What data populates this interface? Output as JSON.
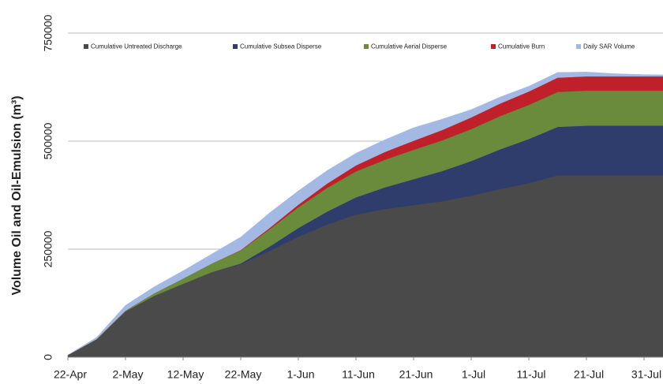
{
  "chart_data": {
    "type": "stacked-area",
    "y_label": "Volume Oil and Oil-Emulsion (m³)",
    "categories": [
      "22-Apr",
      null,
      "2-May",
      null,
      "12-May",
      null,
      "22-May",
      null,
      "1-Jun",
      null,
      "11-Jun",
      null,
      "21-Jun",
      null,
      "1-Jul",
      null,
      "11-Jul",
      null,
      "21-Jul",
      null,
      "31-Jul",
      null
    ],
    "series": [
      {
        "name": "Cumulative Untreated Discharge",
        "color": "#4a4a4a",
        "values": [
          5000,
          42000,
          106000,
          142000,
          170000,
          197000,
          215000,
          246000,
          279000,
          307000,
          330000,
          343000,
          352000,
          361000,
          374000,
          389000,
          403000,
          421000,
          421000,
          421000,
          421000,
          421000
        ]
      },
      {
        "name": "Cumulative Subsea Disperse",
        "color": "#2e3d6b",
        "values": [
          0,
          0,
          0,
          0,
          0,
          0,
          2000,
          10000,
          20000,
          30000,
          40000,
          50000,
          60000,
          70000,
          80000,
          92000,
          102000,
          112000,
          115000,
          115000,
          115000,
          115000
        ]
      },
      {
        "name": "Cumulative Aerial Disperse",
        "color": "#6a8a3c",
        "values": [
          0,
          0,
          2000,
          6000,
          12000,
          20000,
          30000,
          40000,
          48000,
          55000,
          60000,
          64000,
          68000,
          71000,
          74000,
          77000,
          79000,
          81000,
          81000,
          81000,
          81000,
          81000
        ]
      },
      {
        "name": "Cumulative Burn",
        "color": "#c0202a",
        "values": [
          0,
          0,
          0,
          0,
          0,
          0,
          1000,
          3000,
          6000,
          10000,
          14000,
          18000,
          21000,
          24000,
          27000,
          29000,
          31000,
          33000,
          33000,
          33000,
          33000,
          33000
        ]
      },
      {
        "name": "Daily SAR Volume",
        "color": "#a3b8e2",
        "values": [
          0,
          4000,
          12000,
          15000,
          18000,
          22000,
          30000,
          35000,
          32000,
          30000,
          28000,
          28000,
          30000,
          25000,
          18000,
          15000,
          12000,
          12000,
          10000,
          6000,
          4000,
          3000
        ]
      }
    ],
    "ylim": [
      0,
      750000
    ],
    "yticks": [
      0,
      250000,
      500000,
      750000
    ],
    "grid": true
  }
}
